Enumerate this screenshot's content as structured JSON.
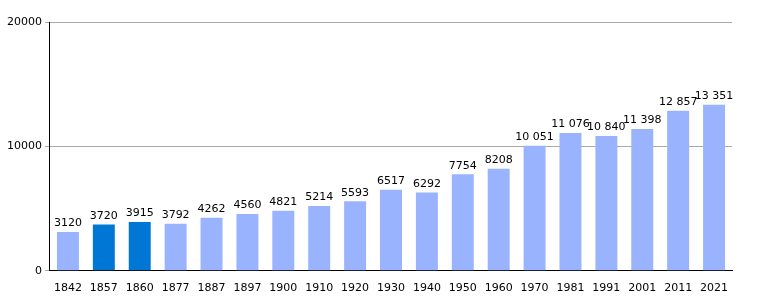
{
  "chart_data": {
    "type": "bar",
    "categories": [
      "1842",
      "1857",
      "1860",
      "1877",
      "1887",
      "1897",
      "1900",
      "1910",
      "1920",
      "1930",
      "1940",
      "1950",
      "1960",
      "1970",
      "1981",
      "1991",
      "2001",
      "2011",
      "2021"
    ],
    "values": [
      3120,
      3720,
      3915,
      3792,
      4262,
      4560,
      4821,
      5214,
      5593,
      6517,
      6292,
      7754,
      8208,
      10051,
      11076,
      10840,
      11398,
      12857,
      13351
    ],
    "value_labels": [
      "3120",
      "3720",
      "3915",
      "3792",
      "4262",
      "4560",
      "4821",
      "5214",
      "5593",
      "6517",
      "6292",
      "7754",
      "8208",
      "10 051",
      "11 076",
      "10 840",
      "11 398",
      "12 857",
      "13 351"
    ],
    "colors": [
      "#99b3ff",
      "#0077d4",
      "#0077d4",
      "#99b3ff",
      "#99b3ff",
      "#99b3ff",
      "#99b3ff",
      "#99b3ff",
      "#99b3ff",
      "#99b3ff",
      "#99b3ff",
      "#99b3ff",
      "#99b3ff",
      "#99b3ff",
      "#99b3ff",
      "#99b3ff",
      "#99b3ff",
      "#99b3ff",
      "#99b3ff"
    ],
    "ylim": [
      0,
      20000
    ],
    "yticks": [
      0,
      10000,
      20000
    ],
    "grid": true,
    "data_labels": true
  }
}
